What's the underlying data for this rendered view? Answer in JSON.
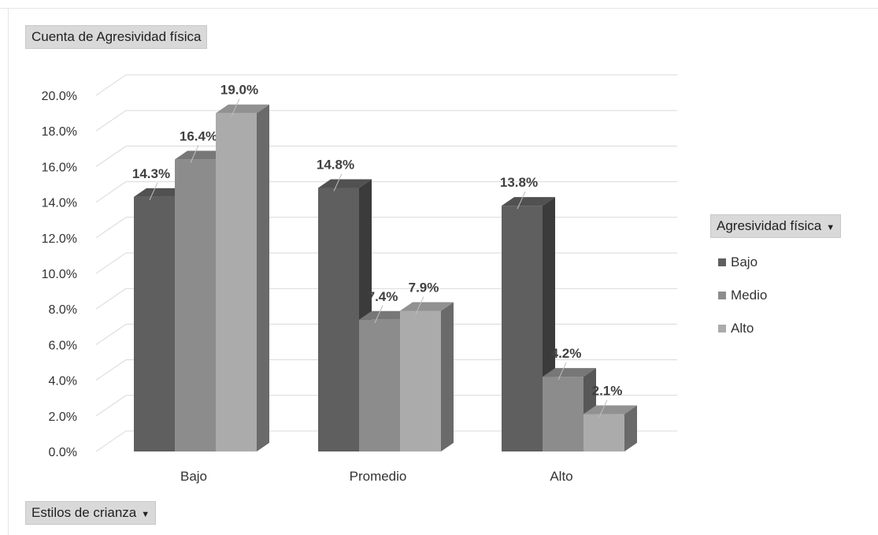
{
  "value_field_label": "Cuenta de Agresividad física",
  "axis_field_label": "Estilos de crianza",
  "legend_field_label": "Agresividad física",
  "dropdown_glyph": "▼",
  "chart_data": {
    "type": "bar",
    "title": "",
    "xlabel": "",
    "ylabel": "",
    "categories": [
      "Bajo",
      "Promedio",
      "Alto"
    ],
    "series": [
      {
        "name": "Bajo",
        "values": [
          14.3,
          14.8,
          13.8
        ],
        "color": "#5f5f5f"
      },
      {
        "name": "Medio",
        "values": [
          16.4,
          7.4,
          4.2
        ],
        "color": "#8c8c8c"
      },
      {
        "name": "Alto",
        "values": [
          19.0,
          7.9,
          2.1
        ],
        "color": "#ababab"
      }
    ],
    "ylim": [
      0,
      20
    ],
    "y_ticks": [
      "0.0%",
      "2.0%",
      "4.0%",
      "6.0%",
      "8.0%",
      "10.0%",
      "12.0%",
      "14.0%",
      "16.0%",
      "18.0%",
      "20.0%"
    ],
    "data_labels": [
      [
        "14.3%",
        "14.8%",
        "13.8%"
      ],
      [
        "16.4%",
        "7.4%",
        "4.2%"
      ],
      [
        "19.0%",
        "7.9%",
        "2.1%"
      ]
    ],
    "value_format": "percent",
    "grid": true,
    "legend_position": "right",
    "style": "3d-clustered-column"
  }
}
